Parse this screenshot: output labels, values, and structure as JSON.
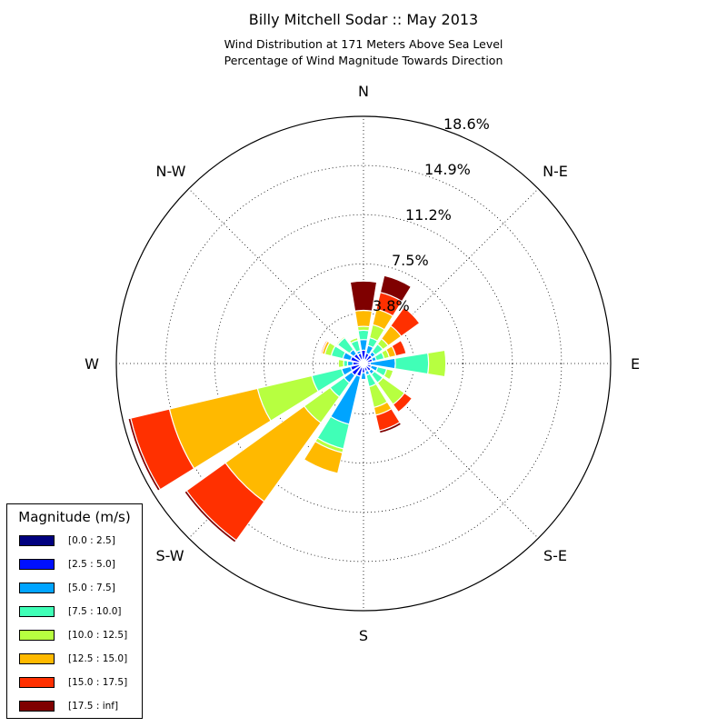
{
  "title": "Billy Mitchell Sodar :: May 2013",
  "subtitle_line1": "Wind Distribution at 171 Meters Above Sea Level",
  "subtitle_line2": "Percentage of Wind Magnitude Towards Direction",
  "directions": {
    "n": "N",
    "ne": "N-E",
    "e": "E",
    "se": "S-E",
    "s": "S",
    "sw": "S-W",
    "w": "W",
    "nw": "N-W"
  },
  "ring_labels": [
    "3.8%",
    "7.5%",
    "11.2%",
    "14.9%",
    "18.6%"
  ],
  "legend": {
    "title": "Magnitude (m/s)",
    "items": [
      {
        "label": "[0.0 : 2.5]",
        "color": "#00007f"
      },
      {
        "label": "[2.5 : 5.0]",
        "color": "#0010ff"
      },
      {
        "label": "[5.0 : 7.5]",
        "color": "#00a4ff"
      },
      {
        "label": "[7.5 : 10.0]",
        "color": "#40ffb7"
      },
      {
        "label": "[10.0 : 12.5]",
        "color": "#b7ff40"
      },
      {
        "label": "[12.5 : 15.0]",
        "color": "#ffb900"
      },
      {
        "label": "[15.0 : 17.5]",
        "color": "#ff3000"
      },
      {
        "label": "[17.5 : inf]",
        "color": "#7f0000"
      }
    ]
  },
  "chart_data": {
    "type": "windrose",
    "title": "Billy Mitchell Sodar :: May 2013",
    "subtitle": [
      "Wind Distribution at 171 Meters Above Sea Level",
      "Percentage of Wind Magnitude Towards Direction"
    ],
    "radial_unit": "%",
    "radial_max": 18.6,
    "radial_ticks": [
      3.8,
      7.5,
      11.2,
      14.9,
      18.6
    ],
    "directions_deg": [
      0,
      22.5,
      45,
      67.5,
      90,
      112.5,
      135,
      157.5,
      180,
      202.5,
      225,
      247.5,
      270,
      292.5,
      315,
      337.5
    ],
    "bins": [
      "[0.0 : 2.5]",
      "[2.5 : 5.0]",
      "[5.0 : 7.5]",
      "[7.5 : 10.0]",
      "[10.0 : 12.5]",
      "[12.5 : 15.0]",
      "[15.0 : 17.5]",
      "[17.5 : inf]"
    ],
    "cumulative": [
      [
        0.3,
        1.0,
        1.8,
        2.5,
        2.8,
        4.0,
        4.0,
        6.2
      ],
      [
        0.3,
        0.8,
        1.4,
        2.0,
        3.0,
        4.2,
        5.5,
        6.8
      ],
      [
        0.3,
        0.8,
        1.1,
        1.8,
        2.3,
        3.5,
        5.2,
        5.2
      ],
      [
        0.3,
        0.7,
        1.0,
        1.6,
        2.0,
        2.5,
        3.3,
        3.3
      ],
      [
        0.3,
        0.5,
        2.4,
        4.9,
        6.2,
        6.2,
        6.2,
        6.2
      ],
      [
        0.3,
        0.6,
        1.1,
        1.8,
        2.3,
        2.3,
        2.3,
        2.3
      ],
      [
        0.3,
        0.7,
        1.0,
        1.8,
        3.8,
        3.8,
        4.5,
        4.5
      ],
      [
        0.3,
        0.6,
        0.9,
        1.8,
        3.4,
        4.0,
        5.2,
        5.4
      ],
      [
        0.3,
        0.7,
        1.2,
        1.2,
        1.2,
        1.2,
        1.2,
        1.2
      ],
      [
        0.3,
        1.0,
        4.7,
        6.6,
        6.9,
        8.5,
        8.5,
        8.5
      ],
      [
        0.3,
        1.1,
        1.8,
        3.1,
        5.5,
        12.8,
        16.4,
        16.6
      ],
      [
        0.3,
        1.0,
        1.7,
        4.0,
        8.2,
        15.0,
        18.0,
        18.2
      ],
      [
        0.3,
        0.8,
        1.2,
        1.5,
        1.9,
        1.9,
        1.9,
        1.9
      ],
      [
        0.3,
        1.0,
        1.6,
        2.5,
        3.0,
        3.2,
        3.3,
        3.3
      ],
      [
        0.3,
        0.9,
        1.3,
        2.4,
        2.5,
        2.5,
        2.5,
        2.5
      ],
      [
        0.3,
        0.8,
        1.0,
        1.8,
        2.0,
        2.0,
        2.0,
        2.0
      ]
    ]
  }
}
